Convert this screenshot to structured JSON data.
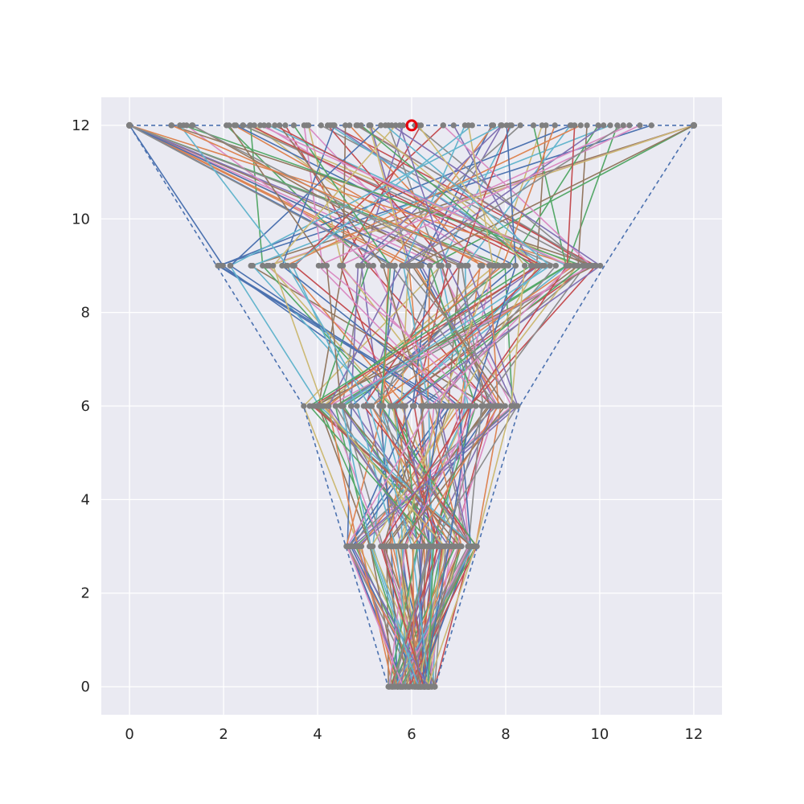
{
  "chart_data": {
    "type": "line",
    "title": "",
    "xlabel": "",
    "ylabel": "",
    "xlim": [
      -0.6,
      12.6
    ],
    "ylim": [
      -0.6,
      12.6
    ],
    "x_ticks": [
      0,
      2,
      4,
      6,
      8,
      10,
      12
    ],
    "y_ticks": [
      0,
      2,
      4,
      6,
      8,
      10,
      12
    ],
    "x_tick_labels": [
      "0",
      "2",
      "4",
      "6",
      "8",
      "10",
      "12"
    ],
    "y_tick_labels": [
      "0",
      "2",
      "4",
      "6",
      "8",
      "10",
      "12"
    ],
    "grid": true,
    "legend": "none",
    "levels_y": [
      0,
      3,
      6,
      9,
      12
    ],
    "level_ranges": [
      {
        "y": 12,
        "xmin": 0.0,
        "xmax": 12.0
      },
      {
        "y": 9,
        "xmin": 1.85,
        "xmax": 10.1
      },
      {
        "y": 6,
        "xmin": 3.7,
        "xmax": 8.3
      },
      {
        "y": 3,
        "xmin": 4.6,
        "xmax": 7.4
      },
      {
        "y": 0,
        "xmin": 5.5,
        "xmax": 6.5
      }
    ],
    "bound_left": [
      [
        0,
        12
      ],
      [
        1.85,
        9
      ],
      [
        3.7,
        6
      ],
      [
        4.6,
        3
      ],
      [
        5.5,
        0
      ]
    ],
    "bound_right": [
      [
        12,
        12
      ],
      [
        10.1,
        9
      ],
      [
        8.3,
        6
      ],
      [
        7.4,
        3
      ],
      [
        6.5,
        0
      ]
    ],
    "path_count": 100,
    "start_points": [
      [
        0,
        12
      ],
      [
        12,
        12
      ]
    ],
    "highlight_point": [
      6,
      12
    ],
    "point_color": "#7f7f7f",
    "highlight_color": "#e8000b",
    "bound_color": "#4c72b0",
    "series_colors": [
      "#4c72b0",
      "#dd8452",
      "#55a868",
      "#c44e52",
      "#8172b3",
      "#937860",
      "#da8bc3",
      "#8c8c8c",
      "#ccb974",
      "#64b5cd"
    ],
    "background_color": "#eaeaf2",
    "grid_color": "#ffffff"
  }
}
